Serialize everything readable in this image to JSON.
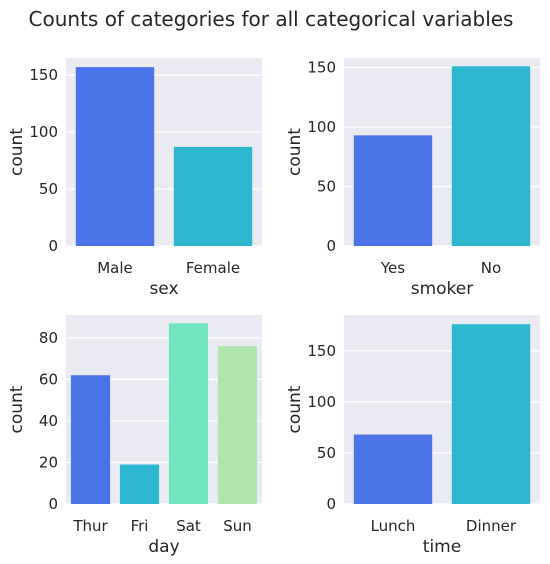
{
  "title": "Counts of categories for all categorical variables",
  "colors": {
    "panel_bg": "#EAEAF2",
    "grid": "#FFFFFF",
    "text": "#262626",
    "palette": [
      "#4A74E8",
      "#2DB6CF",
      "#70E4BE",
      "#AEE6AE"
    ]
  },
  "chart_data": [
    {
      "type": "bar",
      "categories": [
        "Male",
        "Female"
      ],
      "values": [
        157,
        87
      ],
      "xlabel": "sex",
      "ylabel": "count",
      "ylim": [
        0,
        165
      ],
      "yticks": [
        0,
        50,
        100,
        150
      ],
      "grid": true
    },
    {
      "type": "bar",
      "categories": [
        "Yes",
        "No"
      ],
      "values": [
        93,
        151
      ],
      "xlabel": "smoker",
      "ylabel": "count",
      "ylim": [
        0,
        158
      ],
      "yticks": [
        0,
        50,
        100,
        150
      ],
      "grid": true
    },
    {
      "type": "bar",
      "categories": [
        "Thur",
        "Fri",
        "Sat",
        "Sun"
      ],
      "values": [
        62,
        19,
        87,
        76
      ],
      "xlabel": "day",
      "ylabel": "count",
      "ylim": [
        0,
        91
      ],
      "yticks": [
        0,
        20,
        40,
        60,
        80
      ],
      "grid": true
    },
    {
      "type": "bar",
      "categories": [
        "Lunch",
        "Dinner"
      ],
      "values": [
        68,
        176
      ],
      "xlabel": "time",
      "ylabel": "count",
      "ylim": [
        0,
        185
      ],
      "yticks": [
        0,
        50,
        100,
        150
      ],
      "grid": true
    }
  ]
}
